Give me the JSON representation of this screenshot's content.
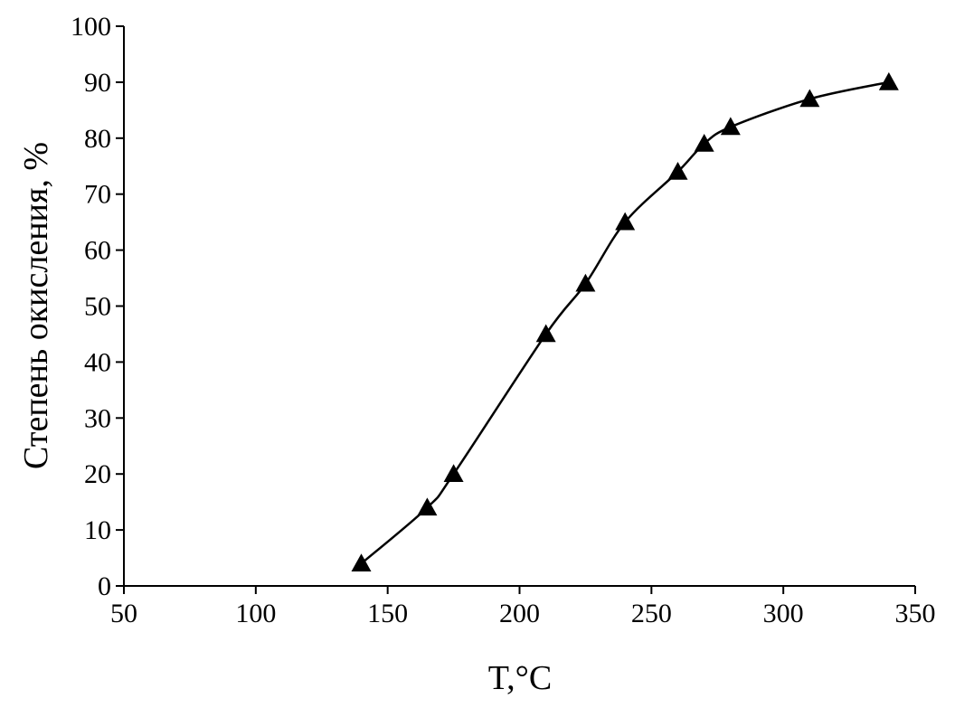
{
  "chart_data": {
    "type": "line",
    "title": "",
    "xlabel": "T,°C",
    "ylabel": "Степень окисления, %",
    "xlim": [
      50,
      350
    ],
    "ylim": [
      0,
      100
    ],
    "xticks": [
      50,
      100,
      150,
      200,
      250,
      300,
      350
    ],
    "yticks": [
      0,
      10,
      20,
      30,
      40,
      50,
      60,
      70,
      80,
      90,
      100
    ],
    "grid": false,
    "legend": "none",
    "colors": {
      "line": "#000000",
      "marker": "#000000",
      "axis": "#000000"
    },
    "marker": "triangle",
    "series": [
      {
        "points": [
          {
            "x": 140,
            "y": 4
          },
          {
            "x": 165,
            "y": 14
          },
          {
            "x": 175,
            "y": 20
          },
          {
            "x": 210,
            "y": 45
          },
          {
            "x": 225,
            "y": 54
          },
          {
            "x": 240,
            "y": 65
          },
          {
            "x": 260,
            "y": 74
          },
          {
            "x": 270,
            "y": 79
          },
          {
            "x": 280,
            "y": 82
          },
          {
            "x": 310,
            "y": 87
          },
          {
            "x": 340,
            "y": 90
          }
        ]
      }
    ]
  }
}
